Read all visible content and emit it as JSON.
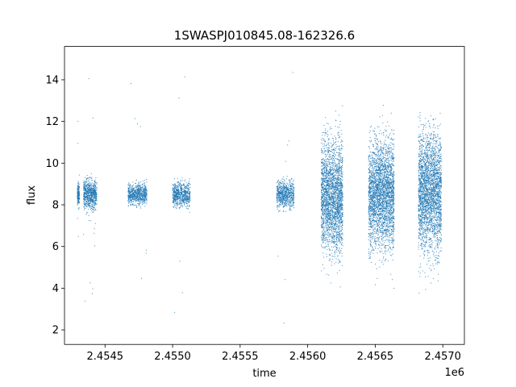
{
  "chart_data": {
    "type": "scatter",
    "title": "1SWASPJ010845.08-162326.6",
    "xlabel": "time",
    "ylabel": "flux",
    "x_offset_label": "1e6",
    "x_ticks": [
      2454500,
      2455000,
      2455500,
      2456000,
      2456500,
      2457000
    ],
    "x_tick_labels": [
      "2.4545",
      "2.4550",
      "2.4555",
      "2.4560",
      "2.4565",
      "2.4570"
    ],
    "y_ticks": [
      2,
      4,
      6,
      8,
      10,
      12,
      14
    ],
    "y_tick_labels": [
      "2",
      "4",
      "6",
      "8",
      "10",
      "12",
      "14"
    ],
    "xlim": [
      2454200,
      2457160
    ],
    "ylim": [
      1.3,
      15.6
    ],
    "grid": false,
    "point_color": "#1f77b4",
    "clusters": [
      {
        "x_start": 2454295,
        "x_end": 2454310,
        "center": 8.5,
        "spread": 0.35,
        "count": 160,
        "outliers": 8
      },
      {
        "x_start": 2454340,
        "x_end": 2454440,
        "center": 8.5,
        "spread": 0.5,
        "count": 700,
        "outliers": 18
      },
      {
        "x_start": 2454670,
        "x_end": 2454810,
        "center": 8.5,
        "spread": 0.35,
        "count": 700,
        "outliers": 8
      },
      {
        "x_start": 2455000,
        "x_end": 2455130,
        "center": 8.5,
        "spread": 0.4,
        "count": 650,
        "outliers": 10
      },
      {
        "x_start": 2455770,
        "x_end": 2455900,
        "center": 8.5,
        "spread": 0.45,
        "count": 650,
        "outliers": 8
      },
      {
        "x_start": 2456100,
        "x_end": 2456260,
        "center": 8.4,
        "spread": 1.9,
        "count": 2400,
        "outliers": 0
      },
      {
        "x_start": 2456450,
        "x_end": 2456640,
        "center": 8.5,
        "spread": 1.8,
        "count": 2800,
        "outliers": 0
      },
      {
        "x_start": 2456820,
        "x_end": 2456990,
        "center": 8.6,
        "spread": 2.0,
        "count": 2600,
        "outliers": 0
      }
    ]
  }
}
